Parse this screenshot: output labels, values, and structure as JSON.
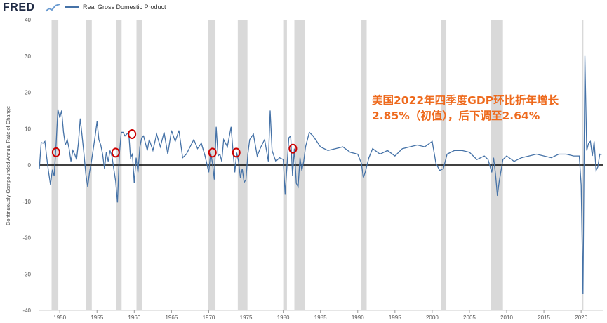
{
  "header": {
    "logo_text": "FRED",
    "logo_icon": "chart-icon",
    "legend_label": "Real Gross Domestic Product"
  },
  "colors": {
    "series": "#4572a7",
    "recession": "#d9d9d9",
    "zero_line": "#000000",
    "annotation": "#ee6a1d",
    "highlight": "#cc0000"
  },
  "annotation": {
    "line1": "美国2022年四季度GDP环比折年增长",
    "line2": "2.85%（初值），后下调至2.64%"
  },
  "chart_data": {
    "type": "line",
    "title": "",
    "xlabel": "",
    "ylabel": "Continuously Compounded Annual Rate of Change",
    "xlim": [
      1947.25,
      2023.0
    ],
    "ylim": [
      -40,
      40
    ],
    "y_ticks": [
      40,
      30,
      20,
      10,
      0,
      -10,
      -20,
      -30,
      -40
    ],
    "x_ticks": [
      1950,
      1955,
      1960,
      1965,
      1970,
      1975,
      1980,
      1985,
      1990,
      1995,
      2000,
      2005,
      2010,
      2015,
      2020
    ],
    "grid": false,
    "legend_position": "top-left",
    "recessions": [
      [
        1948.9,
        1949.8
      ],
      [
        1953.5,
        1954.3
      ],
      [
        1957.6,
        1958.3
      ],
      [
        1960.3,
        1961.1
      ],
      [
        1969.9,
        1970.9
      ],
      [
        1973.9,
        1975.2
      ],
      [
        1980.0,
        1980.5
      ],
      [
        1981.5,
        1982.9
      ],
      [
        1990.5,
        1991.2
      ],
      [
        2001.2,
        2001.9
      ],
      [
        2007.9,
        2009.5
      ],
      [
        2020.1,
        2020.3
      ]
    ],
    "highlighted_points": [
      {
        "x": 1949.5,
        "y": 3.5
      },
      {
        "x": 1957.5,
        "y": 3.4
      },
      {
        "x": 1959.7,
        "y": 8.5
      },
      {
        "x": 1970.5,
        "y": 3.4
      },
      {
        "x": 1973.7,
        "y": 3.4
      },
      {
        "x": 1981.3,
        "y": 4.5
      }
    ],
    "series": [
      {
        "name": "Real Gross Domestic Product",
        "x": [
          1947.25,
          1947.5,
          1947.75,
          1948.0,
          1948.25,
          1948.5,
          1948.75,
          1949.0,
          1949.25,
          1949.5,
          1949.75,
          1950.0,
          1950.25,
          1950.5,
          1950.75,
          1951.0,
          1951.25,
          1951.5,
          1951.75,
          1952.0,
          1952.25,
          1952.5,
          1952.75,
          1953.0,
          1953.25,
          1953.5,
          1953.75,
          1954.0,
          1954.25,
          1954.5,
          1954.75,
          1955.0,
          1955.25,
          1955.5,
          1955.75,
          1956.0,
          1956.25,
          1956.5,
          1956.75,
          1957.0,
          1957.25,
          1957.5,
          1957.75,
          1958.0,
          1958.25,
          1958.5,
          1958.75,
          1959.0,
          1959.25,
          1959.5,
          1959.75,
          1960.0,
          1960.25,
          1960.5,
          1960.75,
          1961.0,
          1961.25,
          1961.5,
          1961.75,
          1962.0,
          1962.5,
          1963.0,
          1963.5,
          1964.0,
          1964.5,
          1965.0,
          1965.5,
          1966.0,
          1966.5,
          1967.0,
          1967.5,
          1968.0,
          1968.5,
          1969.0,
          1969.5,
          1970.0,
          1970.25,
          1970.5,
          1970.75,
          1971.0,
          1971.25,
          1971.5,
          1971.75,
          1972.0,
          1972.5,
          1973.0,
          1973.25,
          1973.5,
          1973.75,
          1974.0,
          1974.25,
          1974.5,
          1974.75,
          1975.0,
          1975.25,
          1975.5,
          1976.0,
          1976.5,
          1977.0,
          1977.5,
          1978.0,
          1978.25,
          1978.5,
          1979.0,
          1979.5,
          1980.0,
          1980.25,
          1980.5,
          1980.75,
          1981.0,
          1981.25,
          1981.5,
          1981.75,
          1982.0,
          1982.25,
          1982.5,
          1982.75,
          1983.0,
          1983.5,
          1984.0,
          1985.0,
          1986.0,
          1987.0,
          1988.0,
          1989.0,
          1990.0,
          1990.5,
          1990.75,
          1991.0,
          1991.5,
          1992.0,
          1993.0,
          1994.0,
          1995.0,
          1996.0,
          1997.0,
          1998.0,
          1999.0,
          2000.0,
          2000.5,
          2001.0,
          2001.5,
          2002.0,
          2003.0,
          2004.0,
          2005.0,
          2006.0,
          2007.0,
          2007.5,
          2008.0,
          2008.25,
          2008.5,
          2008.75,
          2009.0,
          2009.5,
          2010.0,
          2011.0,
          2012.0,
          2013.0,
          2014.0,
          2015.0,
          2016.0,
          2017.0,
          2018.0,
          2019.0,
          2019.75,
          2020.0,
          2020.25,
          2020.5,
          2020.75,
          2021.0,
          2021.25,
          2021.5,
          2021.75,
          2022.0,
          2022.25,
          2022.5,
          2022.75
        ],
        "y": [
          -1.0,
          6.2,
          6.0,
          6.5,
          2.0,
          -2.0,
          -5.4,
          -1.3,
          -3.0,
          5.6,
          15.3,
          13.0,
          15.0,
          9.0,
          5.5,
          7.0,
          4.5,
          1.0,
          4.0,
          3.0,
          1.5,
          6.0,
          12.8,
          8.0,
          3.0,
          -2.5,
          -6.0,
          -2.0,
          1.0,
          4.5,
          8.0,
          12.0,
          7.0,
          5.5,
          3.0,
          -1.0,
          3.5,
          1.0,
          4.0,
          2.5,
          -1.0,
          -4.5,
          -10.3,
          3.0,
          9.0,
          9.0,
          8.0,
          8.5,
          9.0,
          2.0,
          3.0,
          -5.0,
          2.0,
          -2.0,
          5.0,
          7.5,
          8.0,
          6.0,
          4.0,
          7.0,
          4.0,
          8.5,
          5.0,
          9.0,
          3.0,
          9.5,
          6.5,
          9.5,
          2.0,
          3.0,
          5.0,
          7.0,
          4.5,
          6.0,
          2.5,
          -2.0,
          3.4,
          0.5,
          -4.0,
          10.5,
          2.5,
          3.0,
          1.0,
          7.0,
          5.0,
          10.5,
          4.0,
          -2.0,
          3.4,
          1.0,
          -3.5,
          -1.0,
          -4.8,
          -4.0,
          3.0,
          7.0,
          8.5,
          2.5,
          5.0,
          7.0,
          1.0,
          15.0,
          4.0,
          1.0,
          2.0,
          1.5,
          -8.0,
          -0.5,
          7.5,
          8.0,
          -3.0,
          4.5,
          -5.0,
          -6.0,
          2.0,
          -1.5,
          1.0,
          5.0,
          9.0,
          8.0,
          5.0,
          4.0,
          4.5,
          5.0,
          3.5,
          3.0,
          0.5,
          -3.5,
          -2.0,
          2.0,
          4.5,
          3.0,
          4.0,
          2.5,
          4.5,
          5.0,
          5.5,
          5.0,
          6.5,
          0.5,
          -1.5,
          -1.0,
          3.0,
          4.0,
          4.0,
          3.5,
          1.5,
          2.5,
          1.5,
          -2.0,
          2.0,
          -2.5,
          -8.5,
          -4.5,
          1.5,
          2.5,
          1.0,
          2.0,
          2.5,
          3.0,
          2.5,
          2.0,
          3.0,
          3.0,
          2.5,
          2.5,
          -5.5,
          -35.5,
          30.0,
          4.0,
          6.0,
          6.5,
          2.5,
          6.5,
          -1.5,
          -0.5,
          3.0,
          2.85
        ]
      }
    ]
  }
}
